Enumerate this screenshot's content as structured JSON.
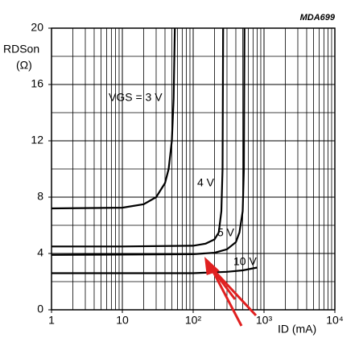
{
  "chart_data": {
    "type": "line",
    "code": "MDA699",
    "ylabel": "RDSon",
    "ylabel_unit": "(Ω)",
    "xlabel": "ID (mA)",
    "xlog": true,
    "xlim": [
      1,
      10000
    ],
    "xticks": [
      1,
      10,
      {
        "value": 100,
        "label": "10²"
      },
      {
        "value": 1000,
        "label": "10³"
      },
      {
        "value": 10000,
        "label": "10⁴"
      }
    ],
    "ylim": [
      0,
      20
    ],
    "yticks": [
      0,
      4,
      8,
      12,
      16,
      20
    ],
    "grid": true,
    "minor_grid": true,
    "series": [
      {
        "name": "VGS = 3 V",
        "color": "#000000",
        "x": [
          1,
          10,
          20,
          30,
          40,
          45,
          50,
          53,
          55
        ],
        "values": [
          7.2,
          7.25,
          7.5,
          8.0,
          9.0,
          10,
          12,
          15,
          20
        ]
      },
      {
        "name": "4 V",
        "color": "#000000",
        "x": [
          1,
          10,
          100,
          150,
          200,
          230,
          250,
          260,
          265
        ],
        "values": [
          4.5,
          4.5,
          4.55,
          4.7,
          5,
          5.5,
          7,
          10,
          20
        ]
      },
      {
        "name": "5 V",
        "color": "#000000",
        "x": [
          1,
          100,
          200,
          300,
          400,
          450,
          500,
          520,
          530
        ],
        "values": [
          3.9,
          3.95,
          4.05,
          4.3,
          4.8,
          5.5,
          7,
          10,
          20
        ]
      },
      {
        "name": "10 V",
        "color": "#000000",
        "x": [
          1,
          100,
          300,
          500,
          800
        ],
        "values": [
          2.6,
          2.6,
          2.7,
          2.8,
          3.0
        ]
      }
    ]
  }
}
